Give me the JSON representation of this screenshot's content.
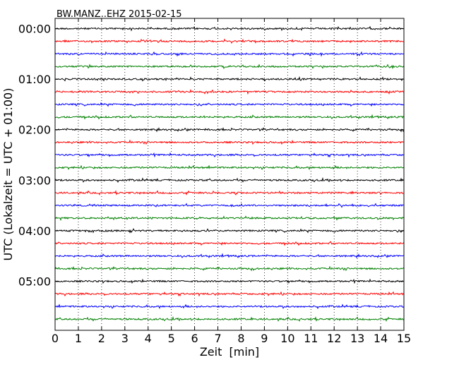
{
  "chart_data": {
    "type": "line",
    "title": "BW.MANZ..EHZ 2015-02-15",
    "xlabel": "Zeit  [min]",
    "ylabel": "UTC (Lokalzeit = UTC + 01:00)",
    "xlim": [
      0,
      15
    ],
    "x_ticks": [
      "0",
      "1",
      "2",
      "3",
      "4",
      "5",
      "6",
      "7",
      "8",
      "9",
      "10",
      "11",
      "12",
      "13",
      "14",
      "15"
    ],
    "y_tick_labels": [
      "00:00",
      "01:00",
      "02:00",
      "03:00",
      "04:00",
      "05:00"
    ],
    "grid": {
      "vertical_dotted": true
    },
    "trace_interval_minutes": 15,
    "trace_count": 24,
    "series_colors": [
      "#000000",
      "#ff0000",
      "#0000ff",
      "#008000"
    ],
    "trace_start_times": [
      "00:00",
      "00:15",
      "00:30",
      "00:45",
      "01:00",
      "01:15",
      "01:30",
      "01:45",
      "02:00",
      "02:15",
      "02:30",
      "02:45",
      "03:00",
      "03:15",
      "03:30",
      "03:45",
      "04:00",
      "04:15",
      "04:30",
      "04:45",
      "05:00",
      "05:15",
      "05:30",
      "05:45"
    ]
  }
}
